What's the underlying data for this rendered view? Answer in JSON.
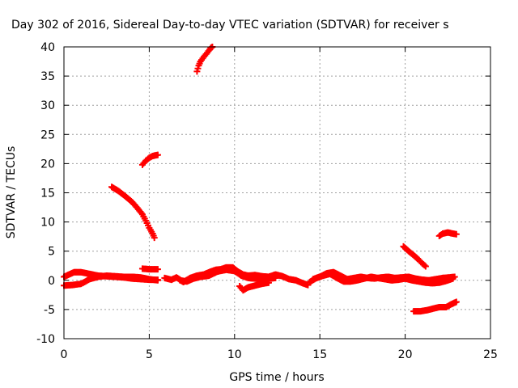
{
  "chart_data": {
    "type": "scatter",
    "title": "Day 302 of 2016, Sidereal Day-to-day VTEC variation (SDTVAR) for receiver s",
    "xlabel": "GPS time / hours",
    "ylabel": "SDTVAR / TECUs",
    "xlim": [
      0,
      25
    ],
    "ylim": [
      -10,
      40
    ],
    "xticks": [
      0,
      5,
      10,
      15,
      20,
      25
    ],
    "yticks": [
      -10,
      -5,
      0,
      5,
      10,
      15,
      20,
      25,
      30,
      35,
      40
    ],
    "grid": true,
    "legend": "none",
    "marker": "plus",
    "color": "#ff0000",
    "series": [
      {
        "segments": [
          [
            [
              0.0,
              0.6
            ],
            [
              0.3,
              1.0
            ],
            [
              0.6,
              1.4
            ],
            [
              1.0,
              1.4
            ],
            [
              1.5,
              1.1
            ],
            [
              2.0,
              0.8
            ],
            [
              2.5,
              0.7
            ],
            [
              3.0,
              0.6
            ],
            [
              3.5,
              0.5
            ],
            [
              4.0,
              0.3
            ],
            [
              4.5,
              0.2
            ],
            [
              5.0,
              0.1
            ],
            [
              5.5,
              0.1
            ]
          ],
          [
            [
              0.0,
              -0.9
            ],
            [
              0.5,
              -0.8
            ],
            [
              1.0,
              -0.6
            ],
            [
              1.2,
              -0.3
            ],
            [
              1.5,
              0.2
            ],
            [
              2.0,
              0.6
            ],
            [
              2.5,
              0.8
            ],
            [
              3.0,
              0.7
            ],
            [
              3.5,
              0.6
            ],
            [
              4.0,
              0.6
            ],
            [
              4.5,
              0.5
            ],
            [
              5.0,
              0.2
            ],
            [
              5.5,
              0.0
            ]
          ],
          [
            [
              4.6,
              2.0
            ],
            [
              5.0,
              1.9
            ],
            [
              5.5,
              1.9
            ]
          ],
          [
            [
              5.9,
              0.4
            ],
            [
              6.3,
              0.1
            ],
            [
              6.6,
              0.5
            ],
            [
              7.0,
              -0.3
            ],
            [
              7.4,
              0.4
            ],
            [
              7.8,
              0.8
            ],
            [
              8.2,
              1.0
            ],
            [
              8.6,
              1.5
            ],
            [
              8.9,
              1.8
            ],
            [
              9.2,
              1.9
            ],
            [
              9.5,
              2.2
            ],
            [
              9.9,
              2.2
            ],
            [
              10.2,
              1.5
            ],
            [
              10.5,
              1.0
            ],
            [
              10.8,
              0.8
            ],
            [
              11.2,
              0.9
            ],
            [
              11.6,
              0.7
            ],
            [
              12.0,
              0.6
            ],
            [
              12.4,
              1.0
            ],
            [
              12.8,
              0.7
            ],
            [
              13.2,
              0.2
            ],
            [
              13.6,
              0.0
            ],
            [
              14.0,
              -0.5
            ],
            [
              14.3,
              -0.8
            ]
          ],
          [
            [
              6.8,
              0.0
            ],
            [
              7.2,
              -0.2
            ],
            [
              7.6,
              0.3
            ],
            [
              8.0,
              0.6
            ],
            [
              8.5,
              0.8
            ],
            [
              9.0,
              1.5
            ],
            [
              9.5,
              1.8
            ],
            [
              10.0,
              1.6
            ],
            [
              10.4,
              0.8
            ],
            [
              10.8,
              0.4
            ],
            [
              11.2,
              0.3
            ],
            [
              11.6,
              0.2
            ],
            [
              12.0,
              0.3
            ],
            [
              12.4,
              0.4
            ]
          ],
          [
            [
              10.3,
              -1.0
            ],
            [
              10.5,
              -1.7
            ],
            [
              10.8,
              -1.2
            ],
            [
              11.2,
              -0.9
            ],
            [
              11.6,
              -0.6
            ],
            [
              12.0,
              -0.4
            ]
          ],
          [
            [
              14.4,
              -0.3
            ],
            [
              14.8,
              0.4
            ],
            [
              15.2,
              0.8
            ],
            [
              15.6,
              1.1
            ],
            [
              16.0,
              0.4
            ],
            [
              16.4,
              -0.2
            ],
            [
              16.8,
              -0.2
            ],
            [
              17.2,
              0.0
            ],
            [
              17.6,
              0.3
            ],
            [
              18.0,
              0.6
            ],
            [
              18.4,
              0.4
            ],
            [
              18.8,
              0.2
            ],
            [
              19.2,
              0.0
            ],
            [
              19.6,
              0.1
            ],
            [
              20.0,
              0.3
            ],
            [
              20.4,
              0.0
            ],
            [
              20.8,
              -0.2
            ],
            [
              21.2,
              -0.4
            ],
            [
              21.6,
              -0.5
            ],
            [
              22.0,
              -0.4
            ],
            [
              22.4,
              -0.1
            ],
            [
              22.8,
              0.3
            ]
          ],
          [
            [
              14.6,
              0.2
            ],
            [
              15.0,
              0.6
            ],
            [
              15.4,
              1.2
            ],
            [
              15.8,
              1.4
            ],
            [
              16.2,
              0.8
            ],
            [
              16.6,
              0.2
            ],
            [
              17.0,
              0.4
            ],
            [
              17.4,
              0.6
            ],
            [
              17.8,
              0.4
            ],
            [
              18.2,
              0.3
            ],
            [
              18.6,
              0.5
            ],
            [
              19.0,
              0.6
            ],
            [
              19.4,
              0.4
            ],
            [
              19.8,
              0.5
            ],
            [
              20.2,
              0.6
            ],
            [
              20.6,
              0.3
            ],
            [
              21.0,
              0.1
            ],
            [
              21.4,
              0.0
            ],
            [
              21.8,
              0.2
            ],
            [
              22.2,
              0.4
            ],
            [
              22.6,
              0.5
            ],
            [
              22.9,
              0.6
            ]
          ],
          [
            [
              2.8,
              16.0
            ],
            [
              3.2,
              15.3
            ],
            [
              3.6,
              14.4
            ],
            [
              4.0,
              13.4
            ],
            [
              4.3,
              12.4
            ],
            [
              4.6,
              11.3
            ],
            [
              4.8,
              10.2
            ],
            [
              5.0,
              9.0
            ],
            [
              5.2,
              8.0
            ],
            [
              5.3,
              7.3
            ]
          ],
          [
            [
              4.6,
              19.8
            ],
            [
              4.8,
              20.5
            ],
            [
              5.0,
              21.0
            ],
            [
              5.2,
              21.3
            ],
            [
              5.5,
              21.5
            ]
          ],
          [
            [
              7.8,
              35.8
            ],
            [
              7.9,
              36.8
            ],
            [
              8.0,
              37.5
            ],
            [
              8.2,
              38.3
            ],
            [
              8.4,
              39.0
            ],
            [
              8.6,
              39.8
            ],
            [
              8.7,
              40.0
            ]
          ],
          [
            [
              19.9,
              5.8
            ],
            [
              20.2,
              5.0
            ],
            [
              20.5,
              4.3
            ],
            [
              20.8,
              3.5
            ],
            [
              21.0,
              2.9
            ],
            [
              21.2,
              2.4
            ]
          ],
          [
            [
              22.0,
              7.6
            ],
            [
              22.2,
              8.0
            ],
            [
              22.5,
              8.2
            ],
            [
              22.8,
              8.0
            ],
            [
              23.0,
              7.9
            ]
          ],
          [
            [
              20.5,
              -5.3
            ],
            [
              20.9,
              -5.3
            ],
            [
              21.3,
              -5.1
            ],
            [
              21.7,
              -4.8
            ],
            [
              22.0,
              -4.6
            ],
            [
              22.4,
              -4.6
            ],
            [
              22.7,
              -4.1
            ],
            [
              23.0,
              -3.7
            ]
          ]
        ]
      }
    ]
  }
}
